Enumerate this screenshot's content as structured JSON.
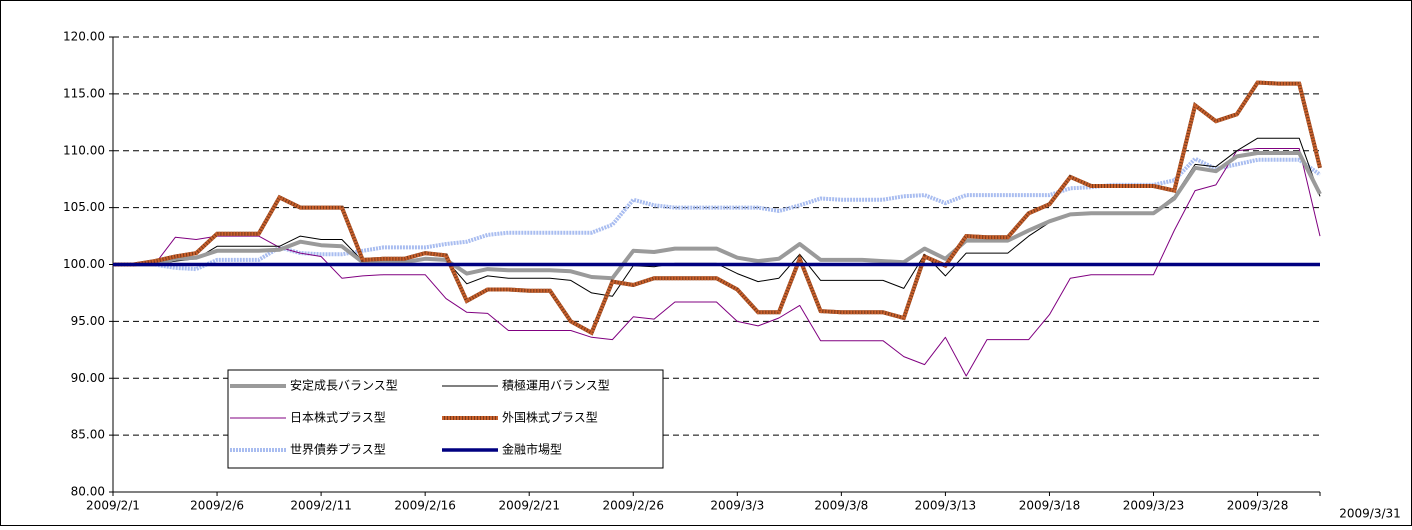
{
  "chart_data": {
    "type": "line",
    "categories": [
      "2009/2/1",
      null,
      null,
      null,
      null,
      "2009/2/6",
      null,
      null,
      null,
      null,
      "2009/2/11",
      null,
      null,
      null,
      null,
      "2009/2/16",
      null,
      null,
      null,
      null,
      "2009/2/21",
      null,
      null,
      null,
      null,
      "2009/2/26",
      null,
      null,
      null,
      null,
      "2009/3/3",
      null,
      null,
      null,
      null,
      "2009/3/8",
      null,
      null,
      null,
      null,
      "2009/3/13",
      null,
      null,
      null,
      null,
      "2009/3/18",
      null,
      null,
      null,
      null,
      "2009/3/23",
      null,
      null,
      null,
      null,
      "2009/3/28",
      null,
      null,
      "2009/3/31"
    ],
    "ylim": [
      80,
      120
    ],
    "yticks": [
      {
        "value": 80,
        "label": "80.00"
      },
      {
        "value": 85,
        "label": "85.00"
      },
      {
        "value": 90,
        "label": "90.00"
      },
      {
        "value": 95,
        "label": "95.00"
      },
      {
        "value": 100,
        "label": "100.00"
      },
      {
        "value": 105,
        "label": "105.00"
      },
      {
        "value": 110,
        "label": "110.00"
      },
      {
        "value": 115,
        "label": "115.00"
      },
      {
        "value": 120,
        "label": "120.00"
      }
    ],
    "grid": true,
    "legend": "lower-left",
    "series": [
      {
        "name": "安定成長バランス型",
        "color": "#9a9a9a",
        "values": [
          100,
          100,
          100,
          100.5,
          100.6,
          101.2,
          101.2,
          101.2,
          101.3,
          102.0,
          101.7,
          101.6,
          100.2,
          100.2,
          100.2,
          100.5,
          100.4,
          99.2,
          99.6,
          99.5,
          99.5,
          99.5,
          99.4,
          98.9,
          98.8,
          101.2,
          101.1,
          101.4,
          101.4,
          101.4,
          100.6,
          100.3,
          100.5,
          101.8,
          100.4,
          100.4,
          100.4,
          100.3,
          100.2,
          101.4,
          100.5,
          102.1,
          102.1,
          102.1,
          103.0,
          103.8,
          104.4,
          104.5,
          104.5,
          104.5,
          104.5,
          105.8,
          108.5,
          108.2,
          109.5,
          109.8,
          109.8,
          109.8,
          106.2
        ]
      },
      {
        "name": "積極運用バランス型",
        "color": "#000000",
        "values": [
          100,
          100,
          100,
          100.3,
          100.5,
          101.6,
          101.6,
          101.6,
          101.6,
          102.5,
          102.2,
          102.2,
          100.3,
          100.3,
          100.3,
          100.6,
          100.4,
          98.3,
          99.0,
          98.8,
          98.8,
          98.8,
          98.6,
          97.5,
          97.2,
          99.9,
          99.8,
          100.1,
          100.1,
          100.1,
          99.2,
          98.5,
          98.8,
          100.9,
          98.6,
          98.6,
          98.6,
          98.6,
          97.9,
          100.9,
          99.0,
          101.0,
          101.0,
          101.0,
          102.5,
          103.7,
          104.5,
          104.6,
          104.6,
          104.6,
          104.6,
          106.0,
          108.8,
          108.6,
          110.0,
          111.1,
          111.1,
          111.1,
          106.0
        ]
      },
      {
        "name": "日本株式プラス型",
        "color": "#800080",
        "values": [
          100,
          100,
          100,
          102.4,
          102.2,
          102.5,
          102.5,
          102.5,
          101.5,
          101.0,
          100.7,
          98.8,
          99.0,
          99.1,
          99.1,
          99.1,
          97.0,
          95.8,
          95.7,
          94.2,
          94.2,
          94.2,
          94.2,
          93.6,
          93.4,
          95.4,
          95.2,
          96.7,
          96.7,
          96.7,
          95.0,
          94.6,
          95.3,
          96.4,
          93.3,
          93.3,
          93.3,
          93.3,
          91.9,
          91.2,
          93.6,
          90.2,
          93.4,
          93.4,
          93.4,
          95.6,
          98.8,
          99.1,
          99.1,
          99.1,
          99.1,
          103.0,
          106.5,
          107.0,
          110.0,
          110.2,
          110.2,
          110.2,
          102.5
        ]
      },
      {
        "name": "外国株式プラス型",
        "color": "#c8602c",
        "values": [
          100,
          100,
          100.3,
          100.7,
          101.0,
          102.7,
          102.7,
          102.7,
          105.9,
          105.0,
          105.0,
          105.0,
          100.4,
          100.5,
          100.5,
          101.0,
          100.8,
          96.8,
          97.8,
          97.8,
          97.7,
          97.7,
          95.0,
          94.0,
          98.5,
          98.2,
          98.8,
          98.8,
          98.8,
          98.8,
          97.8,
          95.8,
          95.8,
          100.5,
          95.9,
          95.8,
          95.8,
          95.8,
          95.3,
          100.7,
          99.9,
          102.5,
          102.4,
          102.4,
          104.5,
          105.3,
          107.7,
          106.9,
          106.9,
          106.9,
          106.9,
          106.5,
          114.0,
          112.6,
          113.2,
          116.0,
          115.9,
          115.9,
          108.5
        ]
      },
      {
        "name": "世界債券プラス型",
        "color": "#a9bdf0",
        "values": [
          100,
          100,
          100,
          99.7,
          99.6,
          100.4,
          100.4,
          100.4,
          101.5,
          101.0,
          100.9,
          100.9,
          101.2,
          101.5,
          101.5,
          101.5,
          101.8,
          102.0,
          102.6,
          102.8,
          102.8,
          102.8,
          102.8,
          102.8,
          103.5,
          105.7,
          105.2,
          105.0,
          105.0,
          105.0,
          105.0,
          105.0,
          104.7,
          105.2,
          105.8,
          105.7,
          105.7,
          105.7,
          106.0,
          106.1,
          105.4,
          106.1,
          106.1,
          106.1,
          106.1,
          106.1,
          106.7,
          106.8,
          107.0,
          107.0,
          107.0,
          107.4,
          109.3,
          108.4,
          108.8,
          109.2,
          109.2,
          109.2,
          107.9
        ]
      },
      {
        "name": "金融市場型",
        "color": "#000080",
        "values": [
          100,
          100,
          100,
          100,
          100,
          100,
          100,
          100,
          100,
          100,
          100,
          100,
          100,
          100,
          100,
          100,
          100,
          100,
          100,
          100,
          100,
          100,
          100,
          100,
          100,
          100,
          100,
          100,
          100,
          100,
          100,
          100,
          100,
          100,
          100,
          100,
          100,
          100,
          100,
          100,
          100,
          100,
          100,
          100,
          100,
          100,
          100,
          100,
          100,
          100,
          100,
          100,
          100,
          100,
          100,
          100,
          100,
          100,
          100
        ]
      }
    ]
  }
}
